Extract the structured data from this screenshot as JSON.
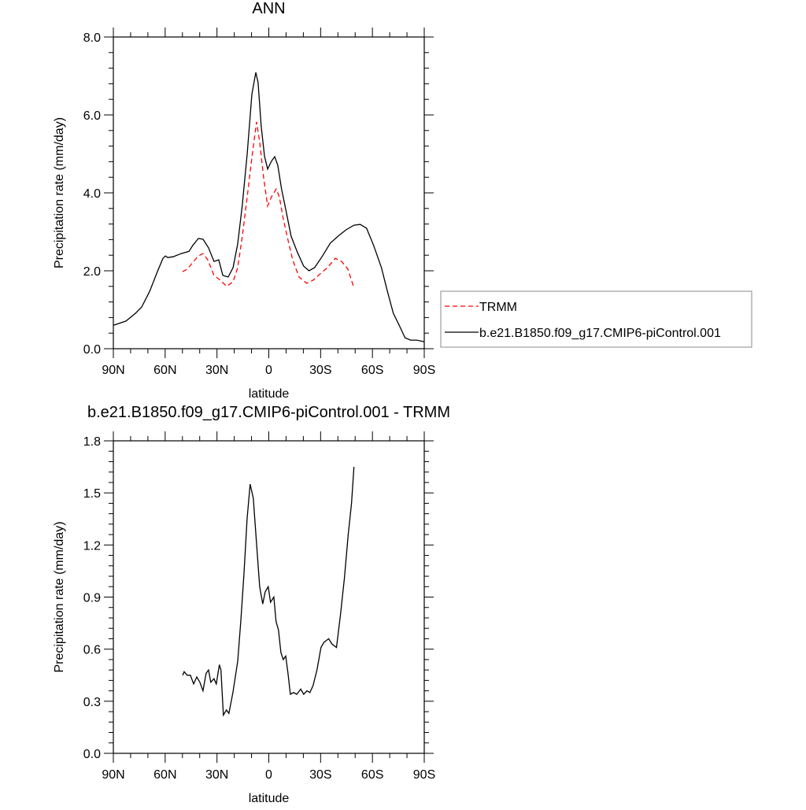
{
  "chart_data": [
    {
      "type": "line",
      "title": "ANN",
      "xlabel": "latitude",
      "ylabel": "Precipitation rate (mm/day)",
      "xlim": [
        90,
        -90
      ],
      "xticks": [
        {
          "value": 90,
          "label": "90N"
        },
        {
          "value": 60,
          "label": "60N"
        },
        {
          "value": 30,
          "label": "30N"
        },
        0,
        {
          "value": -30,
          "label": "30S"
        },
        {
          "value": -60,
          "label": "60S"
        },
        {
          "value": -90,
          "label": "90S"
        }
      ],
      "ylim": [
        0,
        8
      ],
      "yticks": [
        {
          "value": 0,
          "label": "0.0"
        },
        {
          "value": 2,
          "label": "2.0"
        },
        {
          "value": 4,
          "label": "4.0"
        },
        {
          "value": 6,
          "label": "6.0"
        },
        {
          "value": 8,
          "label": "8.0"
        }
      ],
      "legend": "right",
      "series": [
        {
          "name": "TRMM",
          "color": "#ff0000",
          "linestyle": "dashed",
          "x": [
            49.9,
            47.2,
            43.5,
            40.8,
            38.1,
            35.3,
            31.7,
            28.1,
            24.4,
            20.7,
            18,
            15.3,
            12.5,
            9.8,
            7.1,
            5.3,
            3,
            0.7,
            -1.5,
            -4.3,
            -6.1,
            -8.4,
            -11.1,
            -13.8,
            -17.5,
            -22,
            -25.7,
            -30.2,
            -33.9,
            -38.5,
            -42.1,
            -45.8,
            -49.3
          ],
          "values": [
            1.98,
            2.04,
            2.24,
            2.38,
            2.44,
            2.28,
            1.88,
            1.76,
            1.6,
            1.72,
            2.08,
            2.89,
            3.9,
            4.91,
            5.82,
            5.31,
            4.4,
            3.66,
            3.9,
            4.1,
            3.9,
            3.33,
            2.79,
            2.28,
            1.84,
            1.68,
            1.76,
            1.94,
            2.08,
            2.32,
            2.24,
            2.04,
            1.56
          ]
        },
        {
          "name": "b.e21.B1850.f09_g17.CMIP6-piControl.001",
          "color": "#000000",
          "linestyle": "solid",
          "x": [
            90,
            82.7,
            77.2,
            73.6,
            69,
            64.5,
            61.3,
            59.9,
            58.5,
            55.4,
            50.8,
            46.2,
            44,
            40.8,
            38.1,
            34.9,
            31.7,
            29,
            26.6,
            23.5,
            20.7,
            18,
            15.3,
            12.5,
            9.8,
            7.5,
            6.2,
            4.4,
            2.5,
            0.7,
            -1.5,
            -3.4,
            -5.2,
            -7.4,
            -10.2,
            -12.9,
            -16.5,
            -20.2,
            -23.3,
            -26.5,
            -31.1,
            -35.6,
            -40.2,
            -44.7,
            -49.3,
            -52.9,
            -56.6,
            -60.7,
            -65.2,
            -68.4,
            -72.1,
            -75.2,
            -78.9,
            -82.1,
            -85.7,
            -90
          ],
          "values": [
            0.6,
            0.71,
            0.91,
            1.07,
            1.47,
            1.98,
            2.32,
            2.38,
            2.34,
            2.36,
            2.44,
            2.5,
            2.65,
            2.83,
            2.81,
            2.59,
            2.24,
            2.28,
            1.88,
            1.84,
            2.08,
            2.69,
            3.7,
            5.01,
            6.53,
            7.09,
            6.83,
            5.72,
            4.95,
            4.61,
            4.81,
            4.93,
            4.71,
            4.1,
            3.49,
            2.89,
            2.48,
            2.12,
            2.0,
            2.08,
            2.38,
            2.71,
            2.89,
            3.05,
            3.17,
            3.19,
            3.09,
            2.65,
            2.08,
            1.52,
            0.91,
            0.63,
            0.28,
            0.22,
            0.22,
            0.18
          ]
        }
      ]
    },
    {
      "type": "line",
      "title": "b.e21.B1850.f09_g17.CMIP6-piControl.001 - TRMM",
      "xlabel": "latitude",
      "ylabel": "Precipitation rate (mm/day)",
      "xlim": [
        90,
        -90
      ],
      "xticks": [
        {
          "value": 90,
          "label": "90N"
        },
        {
          "value": 60,
          "label": "60N"
        },
        {
          "value": 30,
          "label": "30N"
        },
        0,
        {
          "value": -30,
          "label": "30S"
        },
        {
          "value": -60,
          "label": "60S"
        },
        {
          "value": -90,
          "label": "90S"
        }
      ],
      "ylim": [
        0,
        1.8
      ],
      "yticks": [
        {
          "value": 0,
          "label": "0.0"
        },
        0.3,
        0.6,
        0.9,
        1.2,
        1.5,
        1.8
      ],
      "series": [
        {
          "color": "#000000",
          "linestyle": "solid",
          "x": [
            49.9,
            49,
            47.2,
            45.4,
            43.5,
            41.7,
            39.9,
            38.1,
            36.3,
            34.9,
            33.6,
            31.7,
            30.4,
            28.6,
            27.7,
            26.3,
            24.5,
            23.1,
            20.8,
            18,
            16.2,
            14.4,
            12.6,
            10.8,
            9,
            7.1,
            5.3,
            3.5,
            2.1,
            0.3,
            -1,
            -2.9,
            -4.2,
            -5.6,
            -7,
            -8.4,
            -9.8,
            -11.1,
            -12.5,
            -14.3,
            -16.2,
            -18.5,
            -20.2,
            -22.1,
            -23.8,
            -25.6,
            -27.9,
            -30.2,
            -32,
            -34.7,
            -36.5,
            -39.2,
            -41.5,
            -43.8,
            -46,
            -47.9,
            -49.3
          ],
          "values": [
            0.45,
            0.47,
            0.45,
            0.45,
            0.4,
            0.44,
            0.41,
            0.36,
            0.46,
            0.48,
            0.41,
            0.43,
            0.4,
            0.51,
            0.48,
            0.22,
            0.25,
            0.23,
            0.35,
            0.53,
            0.76,
            1.03,
            1.35,
            1.55,
            1.47,
            1.21,
            0.96,
            0.86,
            0.93,
            0.96,
            0.87,
            0.9,
            0.76,
            0.71,
            0.58,
            0.54,
            0.56,
            0.46,
            0.34,
            0.35,
            0.34,
            0.37,
            0.34,
            0.36,
            0.35,
            0.39,
            0.48,
            0.61,
            0.64,
            0.66,
            0.63,
            0.61,
            0.8,
            1.01,
            1.26,
            1.44,
            1.65
          ]
        }
      ]
    }
  ]
}
